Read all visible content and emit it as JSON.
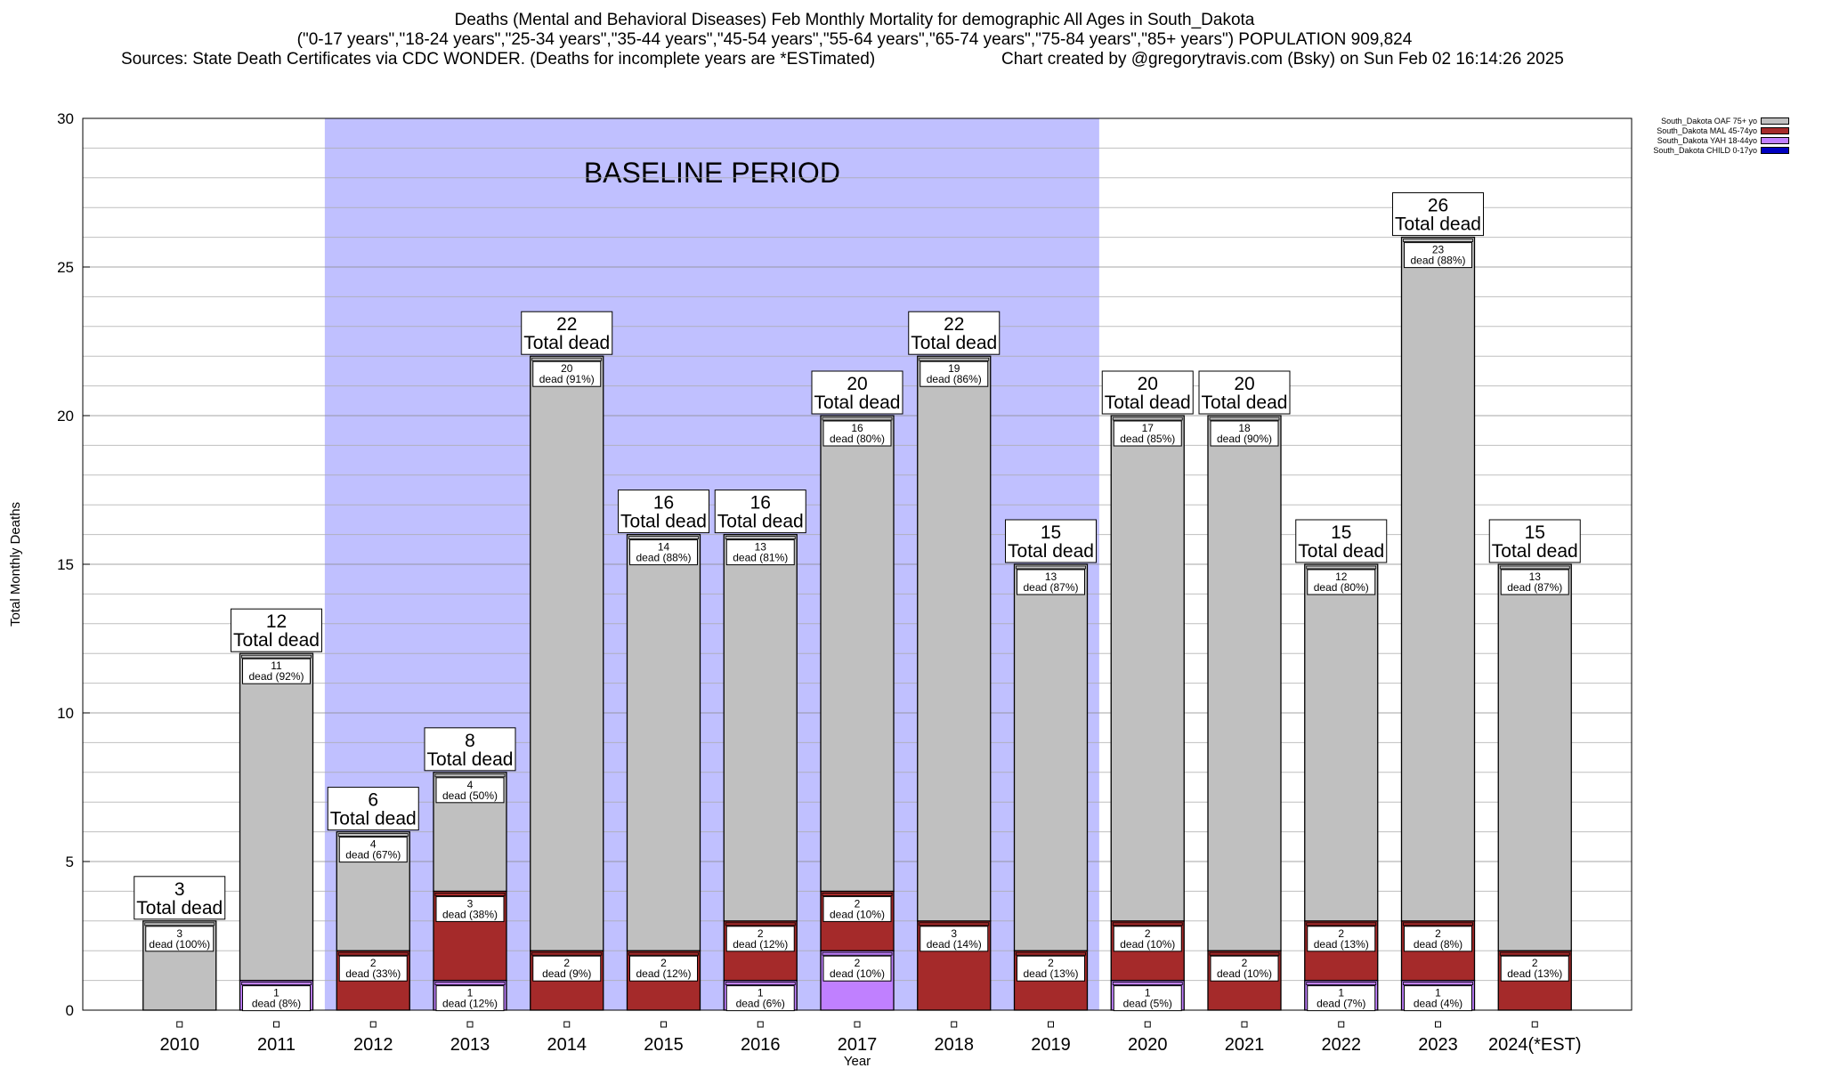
{
  "header": {
    "title": "Deaths (Mental and Behavioral Diseases) Feb Monthly Mortality for demographic All Ages in South_Dakota",
    "subtitle": "(\"0-17 years\",\"18-24 years\",\"25-34 years\",\"35-44 years\",\"45-54 years\",\"55-64 years\",\"65-74 years\",\"75-84 years\",\"85+ years\") POPULATION 909,824",
    "sources": "Sources: State Death Certificates via CDC WONDER. (Deaths for incomplete years are *ESTimated)",
    "credit": "Chart created by @gregorytravis.com (Bsky) on Sun Feb 02 16:14:26 2025"
  },
  "chart_data": {
    "type": "bar",
    "stacked": true,
    "xlabel": "Year",
    "ylabel": "Total Monthly Deaths",
    "ylim": [
      0,
      30
    ],
    "yticks": [
      0,
      5,
      10,
      15,
      20,
      25,
      30
    ],
    "grid": true,
    "legend_placement": "top-right, outside plot",
    "categories": [
      "2010",
      "2011",
      "2012",
      "2013",
      "2014",
      "2015",
      "2016",
      "2017",
      "2018",
      "2019",
      "2020",
      "2021",
      "2022",
      "2023",
      "2024(*EST)"
    ],
    "baseline": {
      "label": "BASELINE PERIOD",
      "start": "2012",
      "end": "2019",
      "color": "#c0c0ff"
    },
    "totals": [
      3,
      12,
      6,
      8,
      22,
      16,
      16,
      20,
      22,
      15,
      20,
      20,
      15,
      26,
      15
    ],
    "total_suffix": "Total dead",
    "series": [
      {
        "name": "South_Dakota CHILD 0-17yo",
        "color": "#0000c0",
        "values": [
          0,
          0,
          0,
          0,
          0,
          0,
          0,
          0,
          0,
          0,
          0,
          0,
          0,
          0,
          0
        ],
        "labels": [
          null,
          null,
          null,
          null,
          null,
          null,
          null,
          null,
          null,
          null,
          null,
          null,
          null,
          null,
          null
        ]
      },
      {
        "name": "South_Dakota YAH 18-44yo",
        "color": "#c080ff",
        "values": [
          0,
          1,
          0,
          1,
          0,
          0,
          1,
          2,
          0,
          0,
          1,
          0,
          1,
          1,
          0
        ],
        "labels": [
          null,
          "dead (8%)",
          null,
          "dead (12%)",
          null,
          null,
          "dead (6%)",
          "dead (10%)",
          null,
          null,
          "dead (5%)",
          null,
          "dead (7%)",
          "dead (4%)",
          null
        ]
      },
      {
        "name": "South_Dakota MAL 45-74yo",
        "color": "#a52a2a",
        "values": [
          0,
          0,
          2,
          3,
          2,
          2,
          2,
          2,
          3,
          2,
          2,
          2,
          2,
          2,
          2
        ],
        "labels": [
          null,
          null,
          "dead (33%)",
          "dead (38%)",
          "dead (9%)",
          "dead (12%)",
          "dead (12%)",
          "dead (10%)",
          "dead (14%)",
          "dead (13%)",
          "dead (10%)",
          "dead (10%)",
          "dead (13%)",
          "dead (8%)",
          "dead (13%)"
        ]
      },
      {
        "name": "South_Dakota OAF 75+ yo",
        "color": "#c0c0c0",
        "values": [
          3,
          11,
          4,
          4,
          20,
          14,
          13,
          16,
          19,
          13,
          17,
          18,
          12,
          23,
          13
        ],
        "labels": [
          "dead (100%)",
          "dead (92%)",
          "dead (67%)",
          "dead (50%)",
          "dead (91%)",
          "dead (88%)",
          "dead (81%)",
          "dead (80%)",
          "dead (86%)",
          "dead (87%)",
          "dead (85%)",
          "dead (90%)",
          "dead (80%)",
          "dead (88%)",
          "dead (87%)"
        ]
      }
    ]
  }
}
